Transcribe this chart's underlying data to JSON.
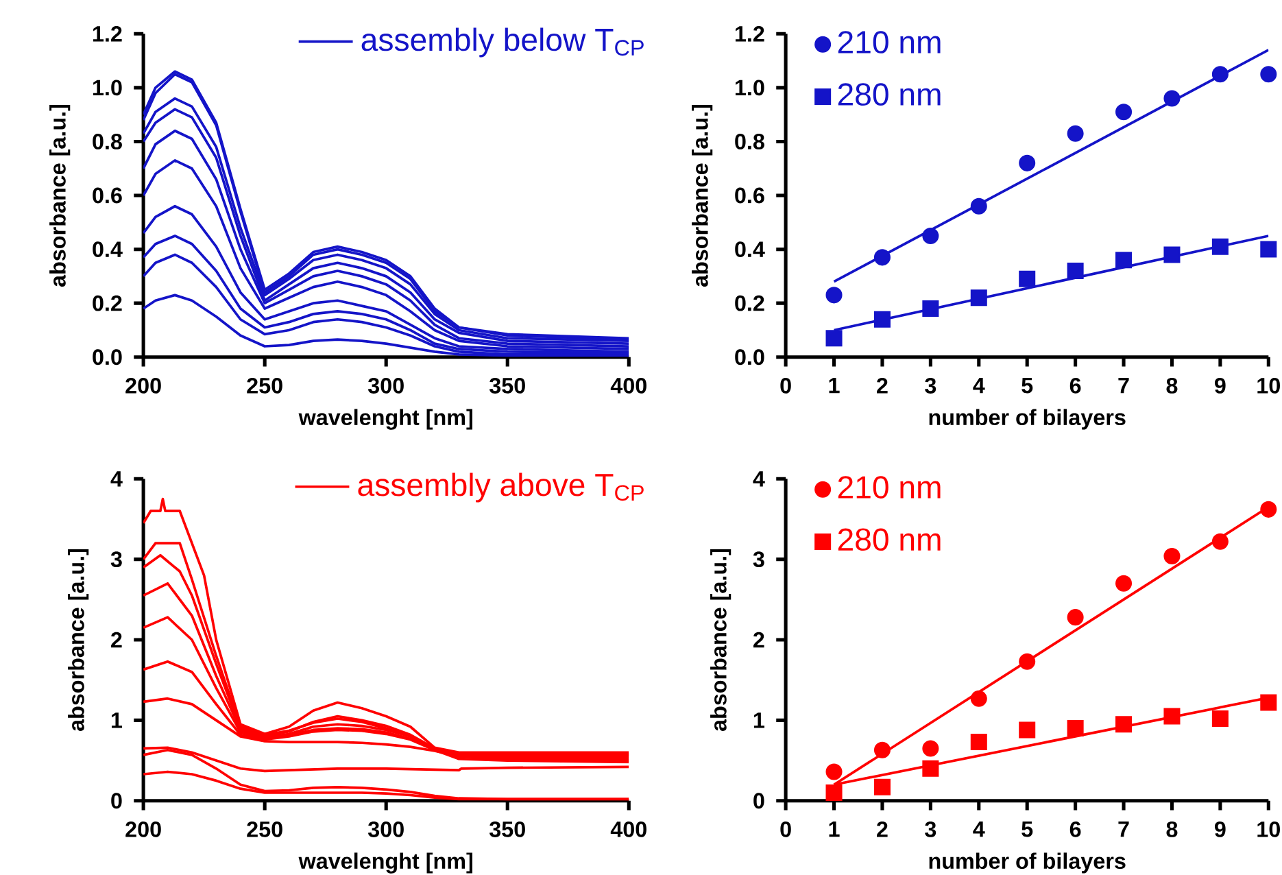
{
  "chart_data": [
    {
      "type": "line",
      "xlabel": "wavelenght [nm]",
      "ylabel": "absorbance [a.u.]",
      "xlim": [
        200,
        400
      ],
      "xticks": [
        200,
        250,
        300,
        350,
        400
      ],
      "ylim": [
        0,
        1.2
      ],
      "yticks": [
        {
          "value": 0,
          "label": "0.0"
        },
        {
          "value": 0.2,
          "label": "0.2"
        },
        {
          "value": 0.4,
          "label": "0.4"
        },
        {
          "value": 0.6,
          "label": "0.6"
        },
        {
          "value": 0.8,
          "label": "0.8"
        },
        {
          "value": 1.0,
          "label": "1.0"
        },
        {
          "value": 1.2,
          "label": "1.2"
        }
      ],
      "legend": "top right",
      "x": [
        200,
        205,
        213,
        220,
        230,
        240,
        250,
        260,
        270,
        280,
        290,
        300,
        310,
        320,
        330,
        350,
        400
      ],
      "series": [
        {
          "name": "assembly below T$_{CP}$",
          "color": "#1414c8",
          "values": [
            0.18,
            0.21,
            0.23,
            0.21,
            0.15,
            0.08,
            0.04,
            0.045,
            0.06,
            0.065,
            0.06,
            0.05,
            0.035,
            0.02,
            0.01,
            0.005,
            0.005
          ]
        },
        {
          "color": "#1414c8",
          "values": [
            0.3,
            0.35,
            0.38,
            0.35,
            0.26,
            0.14,
            0.085,
            0.1,
            0.13,
            0.14,
            0.13,
            0.11,
            0.08,
            0.04,
            0.02,
            0.01,
            0.01
          ]
        },
        {
          "color": "#1414c8",
          "values": [
            0.37,
            0.42,
            0.45,
            0.42,
            0.32,
            0.18,
            0.11,
            0.13,
            0.16,
            0.17,
            0.16,
            0.14,
            0.1,
            0.05,
            0.03,
            0.02,
            0.015
          ]
        },
        {
          "color": "#1414c8",
          "values": [
            0.46,
            0.52,
            0.56,
            0.53,
            0.41,
            0.24,
            0.14,
            0.17,
            0.2,
            0.21,
            0.19,
            0.17,
            0.12,
            0.07,
            0.04,
            0.03,
            0.02
          ]
        },
        {
          "color": "#1414c8",
          "values": [
            0.6,
            0.68,
            0.73,
            0.7,
            0.56,
            0.33,
            0.18,
            0.22,
            0.26,
            0.28,
            0.26,
            0.23,
            0.17,
            0.1,
            0.06,
            0.04,
            0.03
          ]
        },
        {
          "color": "#1414c8",
          "values": [
            0.7,
            0.79,
            0.84,
            0.81,
            0.66,
            0.4,
            0.2,
            0.25,
            0.3,
            0.32,
            0.3,
            0.27,
            0.21,
            0.12,
            0.07,
            0.05,
            0.04
          ]
        },
        {
          "color": "#1414c8",
          "values": [
            0.8,
            0.87,
            0.92,
            0.89,
            0.74,
            0.45,
            0.21,
            0.27,
            0.33,
            0.35,
            0.33,
            0.3,
            0.24,
            0.14,
            0.09,
            0.06,
            0.05
          ]
        },
        {
          "color": "#1414c8",
          "values": [
            0.83,
            0.91,
            0.96,
            0.93,
            0.78,
            0.48,
            0.23,
            0.29,
            0.36,
            0.38,
            0.36,
            0.33,
            0.27,
            0.16,
            0.1,
            0.07,
            0.06
          ]
        },
        {
          "color": "#1414c8",
          "values": [
            0.88,
            0.98,
            1.05,
            1.02,
            0.86,
            0.54,
            0.24,
            0.3,
            0.38,
            0.4,
            0.38,
            0.35,
            0.29,
            0.17,
            0.11,
            0.08,
            0.065
          ]
        },
        {
          "color": "#1414c8",
          "values": [
            0.9,
            1.0,
            1.06,
            1.03,
            0.87,
            0.55,
            0.25,
            0.31,
            0.39,
            0.41,
            0.39,
            0.36,
            0.3,
            0.18,
            0.11,
            0.085,
            0.07
          ]
        }
      ]
    },
    {
      "type": "scatter",
      "xlabel": "number of bilayers",
      "ylabel": "absorbance [a.u.]",
      "xlim": [
        0,
        10
      ],
      "xticks": [
        0,
        1,
        2,
        3,
        4,
        5,
        6,
        7,
        8,
        9,
        10
      ],
      "ylim": [
        0,
        1.2
      ],
      "yticks": [
        {
          "value": 0,
          "label": "0.0"
        },
        {
          "value": 0.2,
          "label": "0.2"
        },
        {
          "value": 0.4,
          "label": "0.4"
        },
        {
          "value": 0.6,
          "label": "0.6"
        },
        {
          "value": 0.8,
          "label": "0.8"
        },
        {
          "value": 1.0,
          "label": "1.0"
        },
        {
          "value": 1.2,
          "label": "1.2"
        }
      ],
      "legend": "top left",
      "x": [
        1,
        2,
        3,
        4,
        5,
        6,
        7,
        8,
        9,
        10
      ],
      "series": [
        {
          "name": "210 nm",
          "color": "#1414c8",
          "marker": "circle",
          "values": [
            0.23,
            0.37,
            0.45,
            0.56,
            0.72,
            0.83,
            0.91,
            0.96,
            1.05,
            1.05
          ]
        },
        {
          "name": "280 nm",
          "color": "#1414c8",
          "marker": "square",
          "values": [
            0.07,
            0.14,
            0.18,
            0.22,
            0.29,
            0.32,
            0.36,
            0.38,
            0.41,
            0.4
          ]
        },
        {
          "type": "line",
          "color": "#1414c8",
          "x": [
            1,
            10
          ],
          "values": [
            0.28,
            1.14
          ]
        },
        {
          "type": "line",
          "color": "#1414c8",
          "x": [
            1,
            10
          ],
          "values": [
            0.1,
            0.45
          ]
        }
      ]
    },
    {
      "type": "line",
      "xlabel": "wavelenght [nm]",
      "ylabel": "absorbance [a.u.]",
      "xlim": [
        200,
        400
      ],
      "xticks": [
        200,
        250,
        300,
        350,
        400
      ],
      "ylim": [
        0,
        4
      ],
      "yticks": [
        0,
        1,
        2,
        3,
        4
      ],
      "legend": "top right",
      "x": [
        200,
        210,
        220,
        230,
        240,
        250,
        260,
        270,
        280,
        290,
        300,
        310,
        320,
        330,
        350,
        400
      ],
      "series": [
        {
          "name": "assembly above T$_{CP}$",
          "color": "#ff0000",
          "values": [
            0.33,
            0.36,
            0.33,
            0.25,
            0.15,
            0.1,
            0.1,
            0.1,
            0.1,
            0.1,
            0.09,
            0.07,
            0.04,
            0.02,
            0.02,
            0.02
          ]
        },
        {
          "color": "#ff0000",
          "values": [
            0.57,
            0.63,
            0.57,
            0.4,
            0.2,
            0.12,
            0.13,
            0.16,
            0.17,
            0.16,
            0.14,
            0.11,
            0.06,
            0.03,
            0.02,
            0.02
          ]
        },
        {
          "color": "#ff0000",
          "x": [
            200,
            210,
            220,
            230,
            240,
            250,
            260,
            270,
            280,
            300,
            330,
            331,
            350,
            400
          ],
          "values": [
            0.65,
            0.66,
            0.6,
            0.5,
            0.4,
            0.37,
            0.38,
            0.39,
            0.4,
            0.4,
            0.38,
            0.4,
            0.41,
            0.42
          ]
        },
        {
          "color": "#ff0000",
          "values": [
            1.23,
            1.27,
            1.2,
            1.0,
            0.8,
            0.74,
            0.73,
            0.73,
            0.73,
            0.72,
            0.7,
            0.67,
            0.62,
            0.55,
            0.52,
            0.5
          ]
        },
        {
          "color": "#ff0000",
          "values": [
            1.63,
            1.73,
            1.6,
            1.2,
            0.82,
            0.76,
            0.8,
            0.86,
            0.88,
            0.87,
            0.83,
            0.76,
            0.63,
            0.52,
            0.5,
            0.48
          ]
        },
        {
          "color": "#ff0000",
          "values": [
            2.15,
            2.28,
            2.0,
            1.4,
            0.85,
            0.77,
            0.82,
            0.88,
            0.9,
            0.89,
            0.85,
            0.77,
            0.63,
            0.55,
            0.53,
            0.52
          ]
        },
        {
          "color": "#ff0000",
          "values": [
            2.55,
            2.7,
            2.3,
            1.55,
            0.88,
            0.78,
            0.83,
            0.92,
            0.95,
            0.93,
            0.88,
            0.8,
            0.64,
            0.56,
            0.55,
            0.55
          ]
        },
        {
          "color": "#ff0000",
          "x": [
            200,
            207,
            215,
            220,
            230,
            240,
            250,
            260,
            270,
            280,
            290,
            300,
            310,
            320,
            330,
            350,
            400
          ],
          "values": [
            2.9,
            3.05,
            2.85,
            2.55,
            1.7,
            0.9,
            0.8,
            0.86,
            0.98,
            1.05,
            1.0,
            0.93,
            0.82,
            0.65,
            0.57,
            0.56,
            0.58
          ]
        },
        {
          "color": "#ff0000",
          "x": [
            200,
            205,
            215,
            220,
            230,
            240,
            250,
            260,
            270,
            280,
            290,
            300,
            310,
            320,
            330,
            350,
            400
          ],
          "values": [
            3.0,
            3.2,
            3.2,
            2.75,
            1.8,
            0.92,
            0.82,
            0.87,
            0.97,
            1.02,
            0.98,
            0.9,
            0.8,
            0.65,
            0.58,
            0.57,
            0.57
          ]
        },
        {
          "color": "#ff0000",
          "x": [
            200,
            203,
            207,
            208,
            209,
            215,
            220,
            225,
            230,
            240,
            250,
            260,
            270,
            280,
            290,
            300,
            310,
            320,
            330,
            350,
            400
          ],
          "values": [
            3.45,
            3.6,
            3.6,
            3.75,
            3.6,
            3.6,
            3.2,
            2.8,
            2.0,
            0.95,
            0.83,
            0.92,
            1.12,
            1.22,
            1.15,
            1.05,
            0.92,
            0.66,
            0.6,
            0.6,
            0.6
          ]
        }
      ]
    },
    {
      "type": "scatter",
      "xlabel": "number of bilayers",
      "ylabel": "absorbance [a.u.]",
      "xlim": [
        0,
        10
      ],
      "xticks": [
        0,
        1,
        2,
        3,
        4,
        5,
        6,
        7,
        8,
        9,
        10
      ],
      "ylim": [
        0,
        4
      ],
      "yticks": [
        0,
        1,
        2,
        3,
        4
      ],
      "legend": "top left",
      "x": [
        1,
        2,
        3,
        4,
        5,
        6,
        7,
        8,
        9,
        10
      ],
      "series": [
        {
          "name": "210 nm",
          "color": "#ff0000",
          "marker": "circle",
          "values": [
            0.36,
            0.63,
            0.65,
            1.27,
            1.73,
            2.28,
            2.7,
            3.04,
            3.22,
            3.62
          ]
        },
        {
          "name": "280 nm",
          "color": "#ff0000",
          "marker": "square",
          "values": [
            0.1,
            0.17,
            0.4,
            0.73,
            0.88,
            0.9,
            0.95,
            1.05,
            1.02,
            1.22
          ]
        },
        {
          "type": "line",
          "color": "#ff0000",
          "x": [
            1,
            10
          ],
          "values": [
            0.2,
            3.65
          ]
        },
        {
          "type": "line",
          "color": "#ff0000",
          "x": [
            1,
            10
          ],
          "values": [
            0.2,
            1.28
          ]
        }
      ]
    }
  ]
}
